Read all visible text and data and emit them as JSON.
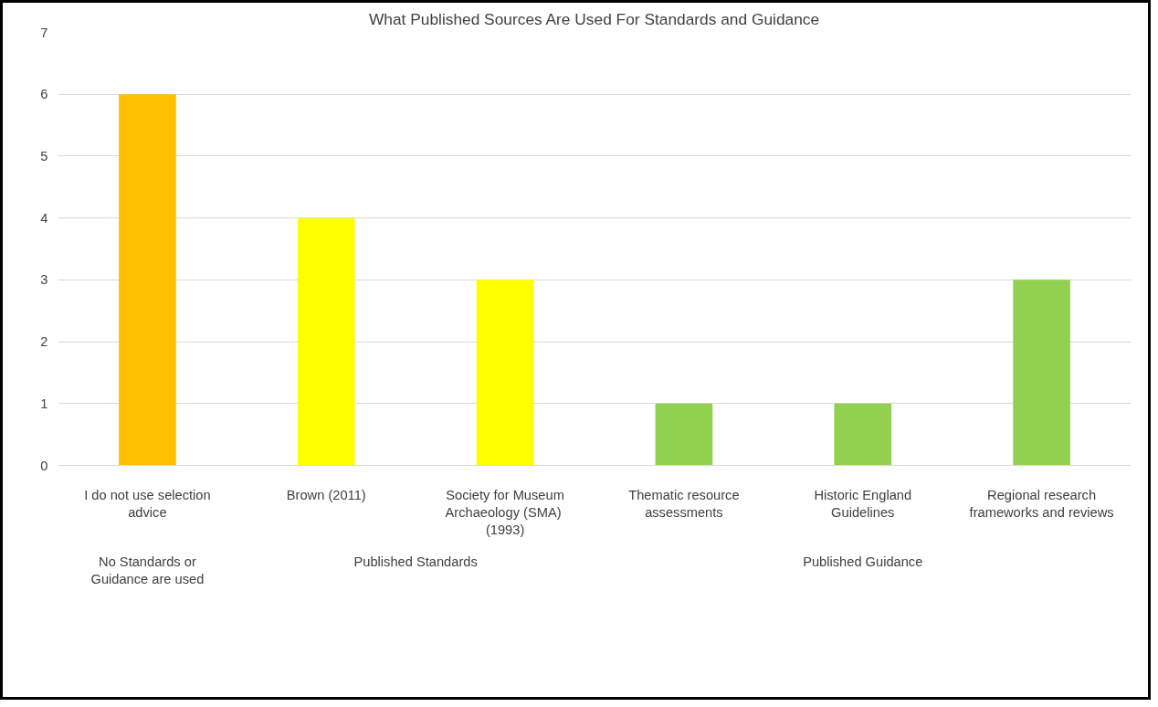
{
  "chart_data": {
    "type": "bar",
    "title": "What Published Sources Are Used For Standards and Guidance",
    "categories": [
      "I do not use selection advice",
      "Brown (2011)",
      "Society for Museum Archaeology  (SMA) (1993)",
      "Thematic resource assessments",
      "Historic England Guidelines",
      "Regional research frameworks and reviews"
    ],
    "values": [
      6,
      4,
      3,
      1,
      1,
      3
    ],
    "colors": [
      "#ffc000",
      "#ffff00",
      "#ffff00",
      "#92d050",
      "#92d050",
      "#92d050"
    ],
    "annotations": [
      "No Standards or Guidance are used",
      "Published Standards",
      "Published Guidance"
    ],
    "ylim": [
      0,
      7
    ],
    "yticks": [
      0,
      1,
      2,
      3,
      4,
      5,
      6,
      7
    ],
    "grid": "y"
  }
}
